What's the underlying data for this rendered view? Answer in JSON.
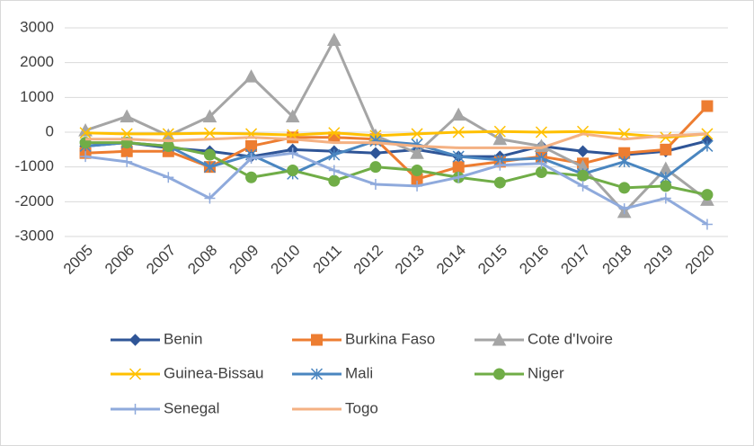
{
  "chart_data": {
    "type": "line",
    "categories": [
      "2005",
      "2006",
      "2007",
      "2008",
      "2009",
      "2010",
      "2011",
      "2012",
      "2013",
      "2014",
      "2015",
      "2016",
      "2017",
      "2018",
      "2019",
      "2020"
    ],
    "ylim": [
      -3000,
      3000
    ],
    "yticks": [
      -3000,
      -2000,
      -1000,
      0,
      1000,
      2000,
      3000
    ],
    "grid": true,
    "legend": "bottom",
    "series": [
      {
        "name": "Benin",
        "color": "#2f5597",
        "marker": "diamond",
        "values": [
          -400,
          -300,
          -450,
          -550,
          -700,
          -500,
          -550,
          -600,
          -500,
          -700,
          -700,
          -400,
          -550,
          -650,
          -550,
          -250
        ]
      },
      {
        "name": "Burkina Faso",
        "color": "#ed7d31",
        "marker": "square",
        "values": [
          -600,
          -550,
          -550,
          -1000,
          -400,
          -150,
          -150,
          -200,
          -1350,
          -1000,
          -850,
          -700,
          -900,
          -600,
          -500,
          750
        ]
      },
      {
        "name": "Cote d'Ivoire",
        "color": "#a5a5a5",
        "marker": "triangle",
        "values": [
          50,
          450,
          -100,
          450,
          1600,
          450,
          2650,
          -100,
          -600,
          500,
          -200,
          -400,
          -1000,
          -2300,
          -1050,
          -1950
        ]
      },
      {
        "name": "Guinea-Bissau",
        "color": "#ffc000",
        "marker": "x",
        "values": [
          -20,
          -50,
          -50,
          -30,
          -50,
          -80,
          -20,
          -100,
          -50,
          0,
          20,
          0,
          20,
          -50,
          -150,
          -50
        ]
      },
      {
        "name": "Mali",
        "color": "#4a86c0",
        "marker": "star",
        "values": [
          -400,
          -300,
          -400,
          -1000,
          -650,
          -1200,
          -650,
          -250,
          -350,
          -700,
          -800,
          -750,
          -1200,
          -850,
          -1300,
          -400
        ]
      },
      {
        "name": "Niger",
        "color": "#70ad47",
        "marker": "circle",
        "values": [
          -300,
          -300,
          -400,
          -650,
          -1300,
          -1100,
          -1400,
          -1000,
          -1100,
          -1300,
          -1450,
          -1150,
          -1250,
          -1600,
          -1550,
          -1800
        ]
      },
      {
        "name": "Senegal",
        "color": "#8faadc",
        "marker": "plus",
        "values": [
          -700,
          -850,
          -1300,
          -1900,
          -750,
          -600,
          -1100,
          -1500,
          -1550,
          -1300,
          -950,
          -900,
          -1550,
          -2200,
          -1900,
          -2650
        ]
      },
      {
        "name": "Togo",
        "color": "#f4b183",
        "marker": "none",
        "values": [
          -200,
          -200,
          -250,
          -200,
          -150,
          -200,
          -300,
          -300,
          -400,
          -450,
          -450,
          -450,
          -50,
          -200,
          -100,
          -50
        ]
      }
    ]
  }
}
